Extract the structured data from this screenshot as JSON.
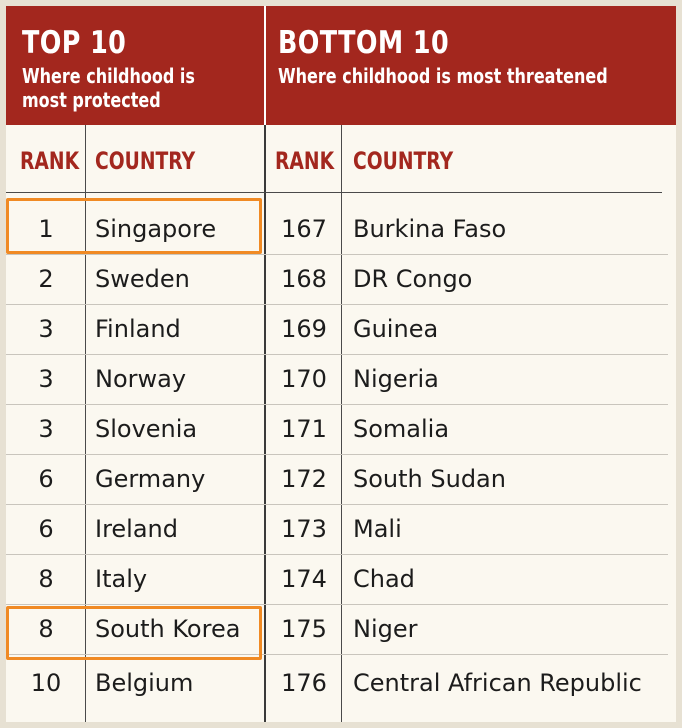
{
  "top": {
    "title": "TOP 10",
    "subtitle_line1": "Where childhood is",
    "subtitle_line2": "most protected",
    "rank_header": "RANK",
    "country_header": "COUNTRY",
    "rows": [
      {
        "rank": "1",
        "country": "Singapore",
        "highlighted": true
      },
      {
        "rank": "2",
        "country": "Sweden",
        "highlighted": false
      },
      {
        "rank": "3",
        "country": "Finland",
        "highlighted": false
      },
      {
        "rank": "3",
        "country": "Norway",
        "highlighted": false
      },
      {
        "rank": "3",
        "country": "Slovenia",
        "highlighted": false
      },
      {
        "rank": "6",
        "country": "Germany",
        "highlighted": false
      },
      {
        "rank": "6",
        "country": "Ireland",
        "highlighted": false
      },
      {
        "rank": "8",
        "country": "Italy",
        "highlighted": false
      },
      {
        "rank": "8",
        "country": "South Korea",
        "highlighted": true
      },
      {
        "rank": "10",
        "country": "Belgium",
        "highlighted": false
      }
    ]
  },
  "bottom": {
    "title": "BOTTOM 10",
    "subtitle": "Where childhood is most threatened",
    "rank_header": "RANK",
    "country_header": "COUNTRY",
    "rows": [
      {
        "rank": "167",
        "country": "Burkina Faso"
      },
      {
        "rank": "168",
        "country": "DR Congo"
      },
      {
        "rank": "169",
        "country": "Guinea"
      },
      {
        "rank": "170",
        "country": "Nigeria"
      },
      {
        "rank": "171",
        "country": "Somalia"
      },
      {
        "rank": "172",
        "country": "South Sudan"
      },
      {
        "rank": "173",
        "country": "Mali"
      },
      {
        "rank": "174",
        "country": "Chad"
      },
      {
        "rank": "175",
        "country": "Niger"
      },
      {
        "rank": "176",
        "country": "Central African Republic"
      }
    ]
  },
  "colors": {
    "header_bg": "#a3271e",
    "accent_text": "#a3271e",
    "highlight": "#f08a24",
    "page_bg": "#fbf8f0"
  }
}
